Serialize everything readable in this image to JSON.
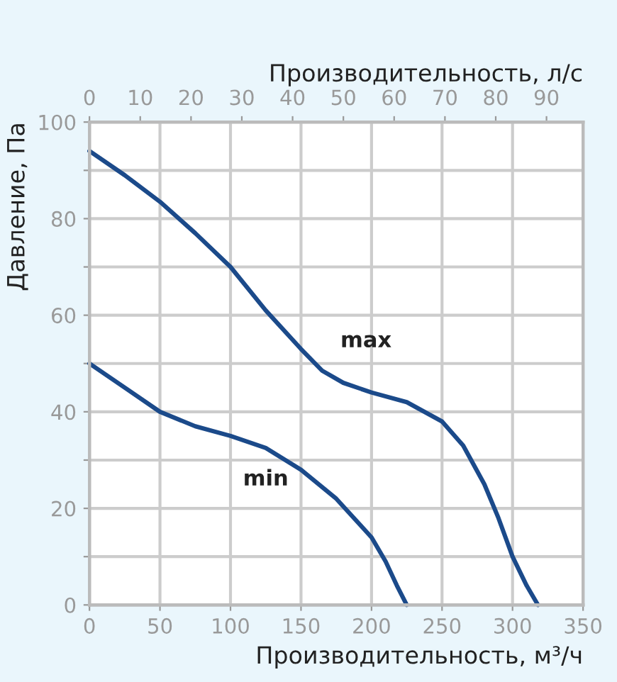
{
  "chart_data": {
    "type": "line",
    "xlabel": "Производительность, м³/ч",
    "x2label": "Производительность, л/с",
    "ylabel": "Давление, Па",
    "xlim": [
      0,
      350
    ],
    "xticks": [
      0,
      50,
      100,
      150,
      200,
      250,
      300,
      350
    ],
    "x2lim": [
      0,
      97.2
    ],
    "x2ticks": [
      0,
      10,
      20,
      30,
      40,
      50,
      60,
      70,
      80,
      90
    ],
    "ylim": [
      0,
      100
    ],
    "yticks": [
      0,
      {
        "value": 10,
        "label": null
      },
      20,
      {
        "value": 30,
        "label": null
      },
      40,
      {
        "value": 50,
        "label": null
      },
      60,
      {
        "value": 70,
        "label": null
      },
      80,
      {
        "value": 90,
        "label": null
      },
      100
    ],
    "grid": true,
    "series": [
      {
        "name": "max",
        "color": "#1b4a8a",
        "x": [
          0,
          25,
          50,
          75,
          100,
          125,
          150,
          165,
          180,
          200,
          225,
          250,
          265,
          280,
          290,
          300,
          310,
          318
        ],
        "values": [
          94,
          89,
          83.5,
          77,
          70,
          61,
          53,
          48.5,
          46,
          44,
          42,
          38,
          33,
          25,
          18,
          10,
          4,
          0
        ]
      },
      {
        "name": "min",
        "color": "#1b4a8a",
        "x": [
          0,
          25,
          50,
          75,
          100,
          125,
          150,
          175,
          200,
          210,
          218,
          225
        ],
        "values": [
          50,
          45,
          40,
          37,
          35,
          32.5,
          28,
          22,
          14,
          9,
          4,
          0
        ]
      }
    ]
  }
}
